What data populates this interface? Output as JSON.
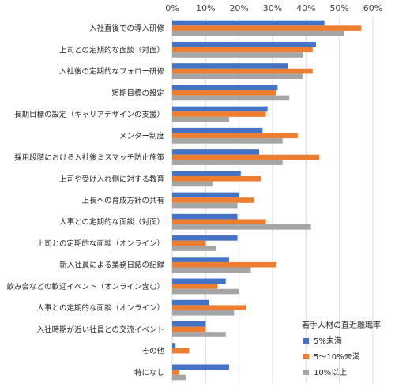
{
  "chart_data": {
    "type": "bar",
    "orientation": "horizontal",
    "xlim": [
      0,
      60
    ],
    "xticks": [
      "0%",
      "10%",
      "20%",
      "30%",
      "40%",
      "50%",
      "60%"
    ],
    "xtick_values": [
      0,
      10,
      20,
      30,
      40,
      50,
      60
    ],
    "grid": true,
    "legend_position": "bottom-right",
    "legend_title": "若手人材の直近離職率",
    "categories": [
      "入社直後での導入研修",
      "上司との定期的な面談（対面）",
      "入社後の定期的なフォロー研修",
      "短期目標の設定",
      "長期目標の設定（キャリアデザインの支援）",
      "メンター制度",
      "採用段階における入社後ミスマッチ防止施策",
      "上司や受け入れ側に対する教育",
      "上長への育成方針の共有",
      "人事との定期的な面談（対面）",
      "上司との定期的な面談（オンライン）",
      "新入社員による業務日誌の記録",
      "飲み会などの歓迎イベント（オンライン含む）",
      "人事との定期的な面談（オンライン）",
      "入社時期が近い社員との交流イベント",
      "その他",
      "特になし"
    ],
    "series": [
      {
        "name": "5%未満",
        "color": "#4472C4",
        "values": [
          45.5,
          43,
          34.5,
          31.5,
          28.5,
          27,
          26,
          20.5,
          20,
          19.5,
          19.5,
          17,
          16,
          11,
          10,
          1,
          17
        ]
      },
      {
        "name": "5～10%未満",
        "color": "#ED7D31",
        "values": [
          56.5,
          42,
          42,
          31,
          28,
          37.5,
          44,
          26.5,
          24.5,
          28,
          10,
          31,
          13.5,
          22,
          10,
          5,
          2
        ]
      },
      {
        "name": "10%以上",
        "color": "#A5A5A5",
        "values": [
          51.5,
          39,
          39,
          35,
          17,
          33,
          33,
          12,
          19.5,
          41.5,
          13,
          23.5,
          20,
          18.5,
          16,
          0,
          4
        ]
      }
    ]
  }
}
